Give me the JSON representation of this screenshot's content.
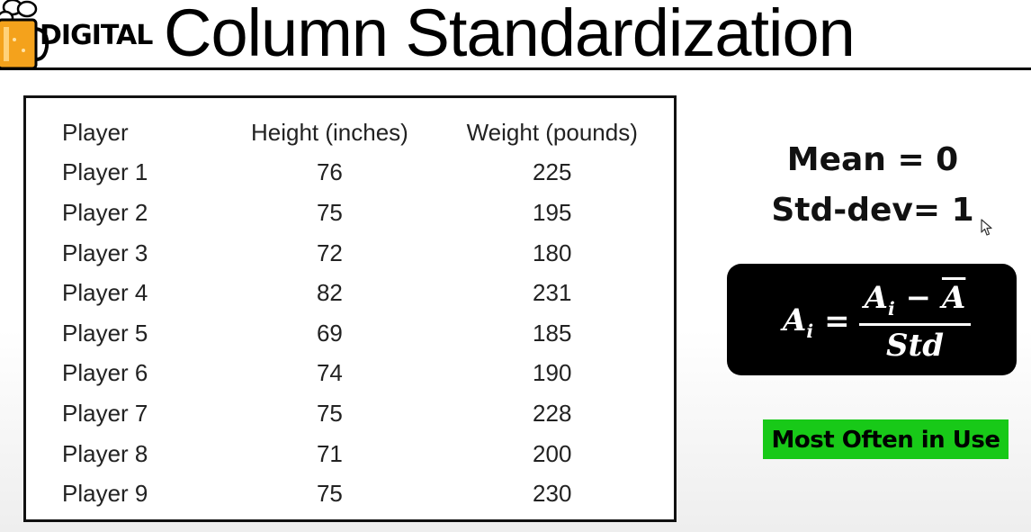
{
  "header": {
    "logo_text": "DIGITAL",
    "title": "Column Standardization"
  },
  "table": {
    "columns": [
      "Player",
      "Height (inches)",
      "Weight (pounds)"
    ],
    "rows": [
      [
        "Player 1",
        "76",
        "225"
      ],
      [
        "Player 2",
        "75",
        "195"
      ],
      [
        "Player 3",
        "72",
        "180"
      ],
      [
        "Player 4",
        "82",
        "231"
      ],
      [
        "Player 5",
        "69",
        "185"
      ],
      [
        "Player 6",
        "74",
        "190"
      ],
      [
        "Player 7",
        "75",
        "228"
      ],
      [
        "Player 8",
        "71",
        "200"
      ],
      [
        "Player 9",
        "75",
        "230"
      ]
    ]
  },
  "stats": {
    "mean": "Mean = 0",
    "std_dev": "Std-dev= 1"
  },
  "formula": {
    "lhs": "A",
    "lhs_sub": "i",
    "equals": "=",
    "num_a": "A",
    "num_a_sub": "i",
    "num_minus": " − ",
    "num_mean": "A",
    "denominator": "Std"
  },
  "badge": {
    "label": "Most Often in Use"
  },
  "colors": {
    "badge_bg": "#18c918",
    "formula_bg": "#000000"
  },
  "icons": {
    "logo": "beer-mug-icon",
    "cursor": "mouse-pointer-icon"
  }
}
